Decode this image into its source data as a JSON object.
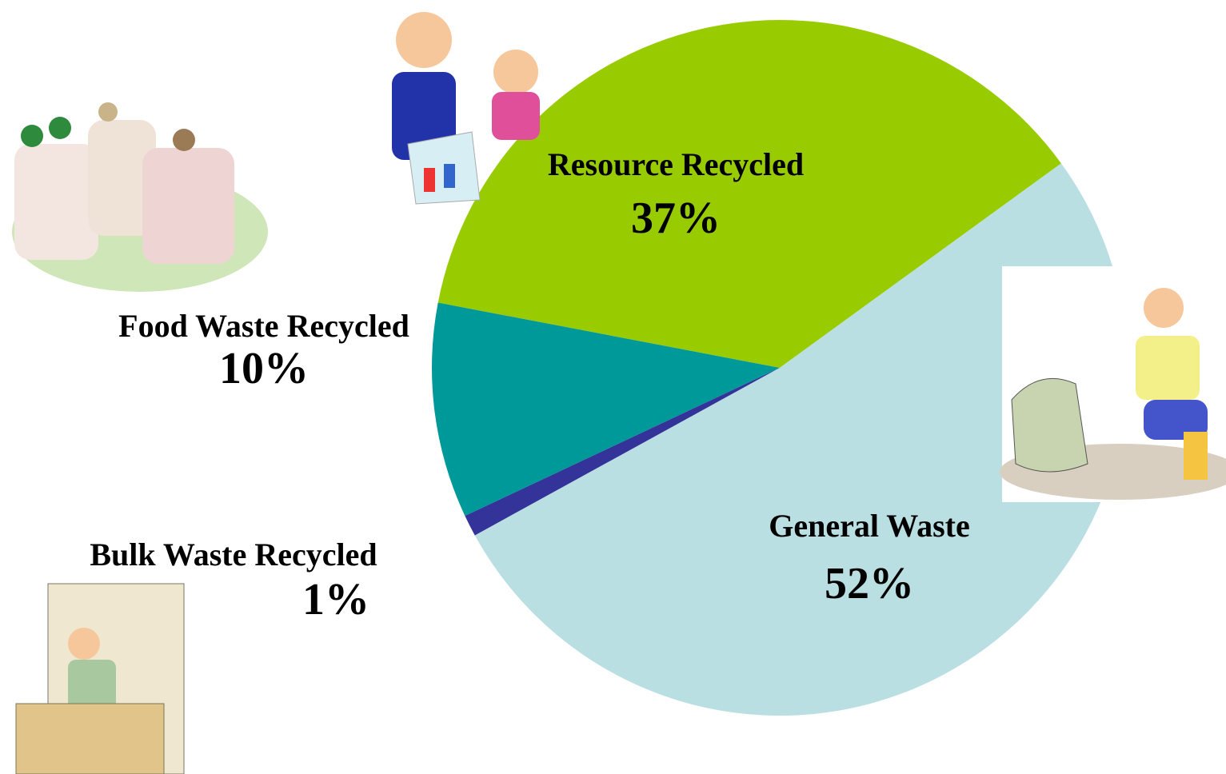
{
  "chart_data": {
    "type": "pie",
    "categories": [
      "Resource Recycled",
      "Food Waste Recycled",
      "Bulk Waste Recycled",
      "General Waste"
    ],
    "values": [
      37,
      10,
      1,
      52
    ],
    "value_labels": [
      "37%",
      "10%",
      "1%",
      "52%"
    ],
    "colors": [
      "#99cc00",
      "#009999",
      "#333399",
      "#b9dfe3"
    ]
  }
}
